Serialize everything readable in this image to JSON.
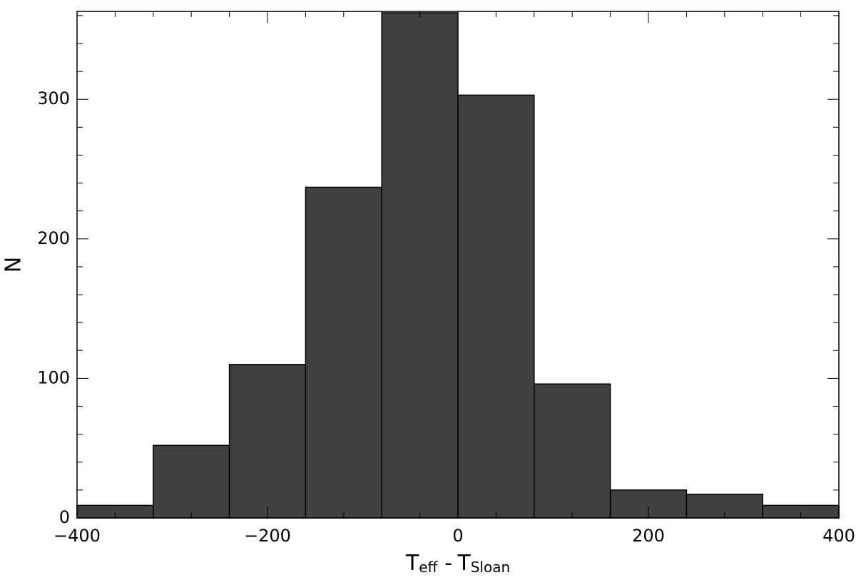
{
  "chart_data": {
    "type": "histogram",
    "xlabel": [
      "T",
      "eff",
      "-",
      "T",
      "Sloan"
    ],
    "ylabel": "N",
    "bins": [
      -400,
      -320,
      -240,
      -160,
      -80,
      0,
      80,
      160,
      240,
      320,
      400
    ],
    "values": [
      9,
      52,
      110,
      237,
      362,
      303,
      96,
      20,
      17,
      9
    ],
    "color": "#404040",
    "xlim": [
      -400,
      400
    ],
    "ylim": [
      0,
      363
    ],
    "xticks": [
      {
        "value": -400,
        "label": "−400"
      },
      {
        "value": -200,
        "label": "−200"
      },
      0,
      200,
      400
    ],
    "yticks": [
      0,
      100,
      200,
      300
    ],
    "xminorticks": [
      -360,
      -320,
      -280,
      -240,
      -160,
      -120,
      -80,
      -40,
      40,
      80,
      120,
      160,
      240,
      280,
      320,
      360
    ],
    "yminorticks": [
      20,
      40,
      60,
      80,
      120,
      140,
      160,
      180,
      220,
      240,
      260,
      280,
      320,
      340,
      360
    ]
  }
}
